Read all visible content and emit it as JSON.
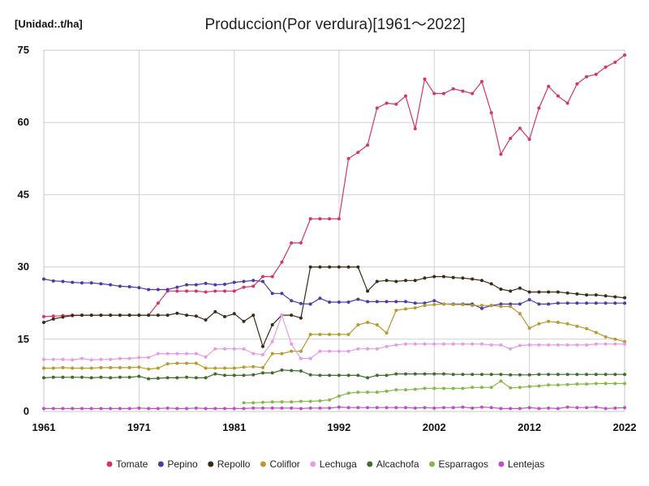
{
  "chart_data": {
    "type": "line",
    "title": "Produccion(Por verdura)[1961～2022]",
    "unit_label": "[Unidad:.t/ha]",
    "xlabel": "",
    "ylabel": "",
    "xlim": [
      1961,
      2022
    ],
    "ylim": [
      0,
      75
    ],
    "x_ticks": [
      1961,
      1971,
      1981,
      1992,
      2002,
      2012,
      2022
    ],
    "y_ticks": [
      0,
      15,
      30,
      45,
      60,
      75
    ],
    "grid": true,
    "legend_position": "bottom",
    "x": [
      1961,
      1962,
      1963,
      1964,
      1965,
      1966,
      1967,
      1968,
      1969,
      1970,
      1971,
      1972,
      1973,
      1974,
      1975,
      1976,
      1977,
      1978,
      1979,
      1980,
      1981,
      1982,
      1983,
      1984,
      1985,
      1986,
      1987,
      1988,
      1989,
      1990,
      1991,
      1992,
      1993,
      1994,
      1995,
      1996,
      1997,
      1998,
      1999,
      2000,
      2001,
      2002,
      2003,
      2004,
      2005,
      2006,
      2007,
      2008,
      2009,
      2010,
      2011,
      2012,
      2013,
      2014,
      2015,
      2016,
      2017,
      2018,
      2019,
      2020,
      2021,
      2022
    ],
    "series": [
      {
        "name": "Tomate",
        "color": "#d6336c",
        "values": [
          19.7,
          19.8,
          19.9,
          20,
          20,
          20,
          20,
          20,
          20,
          20,
          20,
          20,
          22.5,
          25,
          25,
          25,
          25,
          24.8,
          25,
          25,
          25,
          25.8,
          26,
          28,
          28,
          31,
          35,
          35,
          40,
          40,
          40,
          40,
          52.5,
          53.8,
          55.3,
          63,
          64,
          63.8,
          65.5,
          58.7,
          69,
          66,
          66,
          67,
          66.5,
          66,
          68.5,
          62,
          53.4,
          56.7,
          58.8,
          56.5,
          63,
          67.5,
          65.5,
          64,
          68,
          69.5,
          70,
          71.5,
          72.5,
          74
        ]
      },
      {
        "name": "Pepino",
        "color": "#4b3aa8",
        "values": [
          27.5,
          27.1,
          27,
          26.8,
          26.7,
          26.7,
          26.5,
          26.3,
          26,
          25.9,
          25.7,
          25.3,
          25.3,
          25.3,
          25.8,
          26.3,
          26.3,
          26.6,
          26.3,
          26.4,
          26.8,
          27,
          27.2,
          27,
          24.5,
          24.5,
          23,
          22.4,
          22.3,
          23.5,
          22.7,
          22.7,
          22.7,
          23.3,
          22.8,
          22.8,
          22.8,
          22.8,
          22.8,
          22.5,
          22.5,
          23,
          22.3,
          22.3,
          22.3,
          22.3,
          21.4,
          22,
          22.3,
          22.3,
          22.3,
          23.2,
          22.3,
          22.3,
          22.5,
          22.5,
          22.5,
          22.5,
          22.5,
          22.5,
          22.5,
          22.5
        ]
      },
      {
        "name": "Repollo",
        "color": "#3b2b14",
        "values": [
          18.5,
          19.2,
          19.6,
          19.9,
          20,
          20,
          20,
          20,
          20,
          20,
          20,
          20,
          20,
          20,
          20.4,
          20,
          19.8,
          19,
          20.7,
          19.7,
          20.3,
          18.7,
          20,
          13.5,
          18,
          20,
          20,
          19.4,
          30,
          30,
          30,
          30,
          30,
          30,
          25,
          27,
          27.2,
          27,
          27.2,
          27.2,
          27.7,
          28,
          28,
          27.8,
          27.7,
          27.5,
          27.2,
          26.5,
          25.4,
          25,
          25.6,
          24.8,
          24.8,
          24.8,
          24.8,
          24.6,
          24.4,
          24.2,
          24.2,
          24,
          23.8,
          23.6
        ]
      },
      {
        "name": "Coliflor",
        "color": "#b89a2e",
        "values": [
          9,
          9,
          9.1,
          9,
          9,
          9,
          9.1,
          9.1,
          9.1,
          9.1,
          9.2,
          8.8,
          9,
          9.9,
          10,
          10,
          10,
          9,
          9,
          9,
          9,
          9.2,
          9.3,
          9.1,
          12,
          12,
          12.5,
          12.5,
          16,
          16,
          16,
          16,
          16,
          18,
          18.5,
          18,
          16.3,
          21,
          21.3,
          21.5,
          22,
          22.2,
          22.3,
          22.2,
          22.2,
          22,
          22,
          22,
          21.8,
          21.8,
          20.3,
          17.3,
          18.2,
          18.7,
          18.5,
          18.2,
          17.7,
          17.2,
          16.4,
          15.5,
          15,
          14.5
        ]
      },
      {
        "name": "Lechuga",
        "color": "#e79be6",
        "values": [
          10.8,
          10.8,
          10.8,
          10.7,
          11,
          10.7,
          10.8,
          10.8,
          11,
          11,
          11.2,
          11.2,
          12,
          12,
          12,
          12,
          12,
          11.3,
          13,
          13,
          13,
          13,
          12,
          11.8,
          14.5,
          20,
          14,
          11,
          11,
          12.5,
          12.5,
          12.5,
          12.5,
          13,
          13,
          13,
          13.5,
          13.8,
          14,
          14,
          14,
          14,
          14,
          14,
          14,
          14,
          14,
          13.8,
          13.8,
          13,
          13.7,
          13.8,
          13.8,
          13.8,
          13.8,
          13.8,
          13.8,
          13.8,
          14,
          14,
          14,
          14
        ]
      },
      {
        "name": "Alcachofa",
        "color": "#3f6e2a",
        "values": [
          7,
          7.1,
          7.1,
          7.1,
          7.1,
          7,
          7.1,
          7,
          7.1,
          7.1,
          7.3,
          6.8,
          6.9,
          7,
          7,
          7.1,
          7,
          7,
          7.8,
          7.5,
          7.5,
          7.5,
          7.6,
          8,
          8,
          8.6,
          8.5,
          8.4,
          7.6,
          7.5,
          7.5,
          7.5,
          7.5,
          7.5,
          7,
          7.5,
          7.5,
          7.8,
          7.8,
          7.8,
          7.8,
          7.8,
          7.8,
          7.7,
          7.7,
          7.7,
          7.7,
          7.7,
          7.7,
          7.6,
          7.6,
          7.6,
          7.7,
          7.7,
          7.7,
          7.7,
          7.7,
          7.7,
          7.7,
          7.7,
          7.7,
          7.7
        ]
      },
      {
        "name": "Esparragos",
        "color": "#86b94a",
        "values": [
          null,
          null,
          null,
          null,
          null,
          null,
          null,
          null,
          null,
          null,
          null,
          null,
          null,
          null,
          null,
          null,
          null,
          null,
          null,
          null,
          null,
          1.8,
          1.8,
          1.9,
          2,
          2,
          2,
          2.1,
          2.1,
          2.2,
          2.4,
          3.2,
          3.8,
          4,
          4,
          4,
          4.2,
          4.5,
          4.5,
          4.6,
          4.8,
          4.8,
          4.8,
          4.8,
          4.8,
          5,
          5,
          5,
          6.3,
          4.9,
          5,
          5.2,
          5.3,
          5.5,
          5.5,
          5.6,
          5.7,
          5.7,
          5.8,
          5.8,
          5.8,
          5.8
        ]
      },
      {
        "name": "Lentejas",
        "color": "#c04fc6",
        "values": [
          0.6,
          0.6,
          0.6,
          0.6,
          0.6,
          0.6,
          0.6,
          0.6,
          0.6,
          0.6,
          0.7,
          0.6,
          0.6,
          0.7,
          0.6,
          0.6,
          0.7,
          0.6,
          0.6,
          0.6,
          0.6,
          0.6,
          0.7,
          0.7,
          0.7,
          0.7,
          0.7,
          0.6,
          0.7,
          0.7,
          0.7,
          0.9,
          0.8,
          0.8,
          0.8,
          0.8,
          0.8,
          0.8,
          0.8,
          0.7,
          0.8,
          0.7,
          0.8,
          0.8,
          0.9,
          0.7,
          0.9,
          0.8,
          0.6,
          0.6,
          0.6,
          0.8,
          0.6,
          0.7,
          0.6,
          0.9,
          0.8,
          0.8,
          0.9,
          0.6,
          0.7,
          0.8
        ]
      }
    ]
  }
}
